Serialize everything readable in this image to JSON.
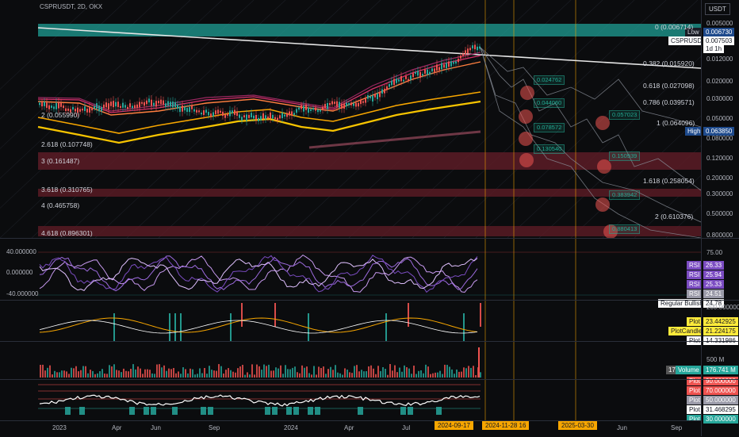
{
  "header": {
    "title": "CSPRUSDT, 2D, OKX"
  },
  "currency_button": "USDT",
  "price_axis": {
    "ticks": [
      "0.005000",
      "0.012000",
      "0.020000",
      "0.030000",
      "0.050000",
      "0.080000",
      "0.120000",
      "0.200000",
      "0.300000",
      "0.500000",
      "0.800000"
    ]
  },
  "price_labels": {
    "low_label": "Low",
    "low_value": "0.006730",
    "symbol": "CSPRUSDT",
    "symbol_value": "0.007503",
    "countdown": "1d 1h",
    "high_label": "High",
    "high_value": "0.063850"
  },
  "fib_levels": [
    "0 (0.006714)",
    "0.382 (0.015920)",
    "0.618 (0.027098)",
    "0.786 (0.039571)",
    "1 (0.064096)",
    "1.618 (0.258054)",
    "2 (0.610376)",
    "2 (0.055990)",
    "2.618 (0.107748)",
    "3 (0.161487)",
    "3.618 (0.310765)",
    "4 (0.465758)",
    "4.618 (0.896301)"
  ],
  "targets": [
    "0.024762",
    "0.044060",
    "0.078572",
    "0.130540",
    "0.057023",
    "0.150939",
    "0.383942",
    "0.880413"
  ],
  "oscillator": {
    "ticks": [
      "40.000000",
      "0.000000",
      "-40.000000"
    ],
    "right_ticks": [
      "75.00"
    ],
    "rsi_label": "RSI",
    "rsi_values": [
      "26.33",
      "25.94",
      "25.33",
      "24.51"
    ],
    "divergence_label": "Regular Bullish",
    "divergence_value": "24.78"
  },
  "plots_pane": {
    "axis_tick": "200.000000",
    "plot_label": "Plot",
    "plot_value": "23.442925",
    "candle_label": "PlotCandle",
    "candle_value": "21.224175",
    "plot2_value": "14.331986"
  },
  "volume_pane": {
    "axis_tick": "500 M",
    "label": "Volume",
    "value": "176.741 M",
    "mini": "176"
  },
  "bottom_pane": {
    "values": [
      "90.000000",
      "70.000000",
      "50.000000",
      "31.468295",
      "30.000000"
    ],
    "label": "Plot"
  },
  "time_axis": {
    "labels": [
      "2023",
      "Apr",
      "Jun",
      "Sep",
      "2024",
      "Apr",
      "Jul",
      "Jun",
      "Sep"
    ],
    "highlights": [
      "2024-09-17",
      "2024-11-28  16",
      "2025-03-30"
    ]
  },
  "colors": {
    "up": "#26a69a",
    "down": "#ef5350",
    "accent": "#f7a600",
    "rsi": "#9c6ade",
    "teal_band": "#1f9e94"
  }
}
